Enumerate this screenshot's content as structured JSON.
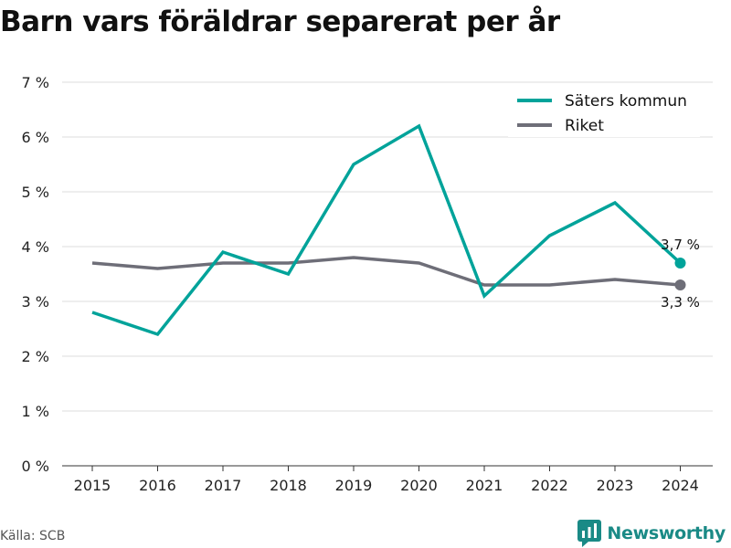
{
  "title": "Barn vars föräldrar separerat per år",
  "source": "Källa: SCB",
  "brand": "Newsworthy",
  "colors": {
    "series1": "#00a39a",
    "series2": "#6e6e78",
    "grid": "#dcdcdc",
    "brand": "#1a8a86"
  },
  "chart_data": {
    "type": "line",
    "x": [
      "2015",
      "2016",
      "2017",
      "2018",
      "2019",
      "2020",
      "2021",
      "2022",
      "2023",
      "2024"
    ],
    "series": [
      {
        "name": "Säters kommun",
        "values": [
          2.8,
          2.4,
          3.9,
          3.5,
          5.5,
          6.2,
          3.1,
          4.2,
          4.8,
          3.7
        ],
        "end_label": "3,7 %"
      },
      {
        "name": "Riket",
        "values": [
          3.7,
          3.6,
          3.7,
          3.7,
          3.8,
          3.7,
          3.3,
          3.3,
          3.4,
          3.3
        ],
        "end_label": "3,3 %"
      }
    ],
    "ylim": [
      0,
      7
    ],
    "yticks": [
      "0 %",
      "1 %",
      "2 %",
      "3 %",
      "4 %",
      "5 %",
      "6 %",
      "7 %"
    ],
    "grid": true,
    "legend_position": "top-right"
  }
}
